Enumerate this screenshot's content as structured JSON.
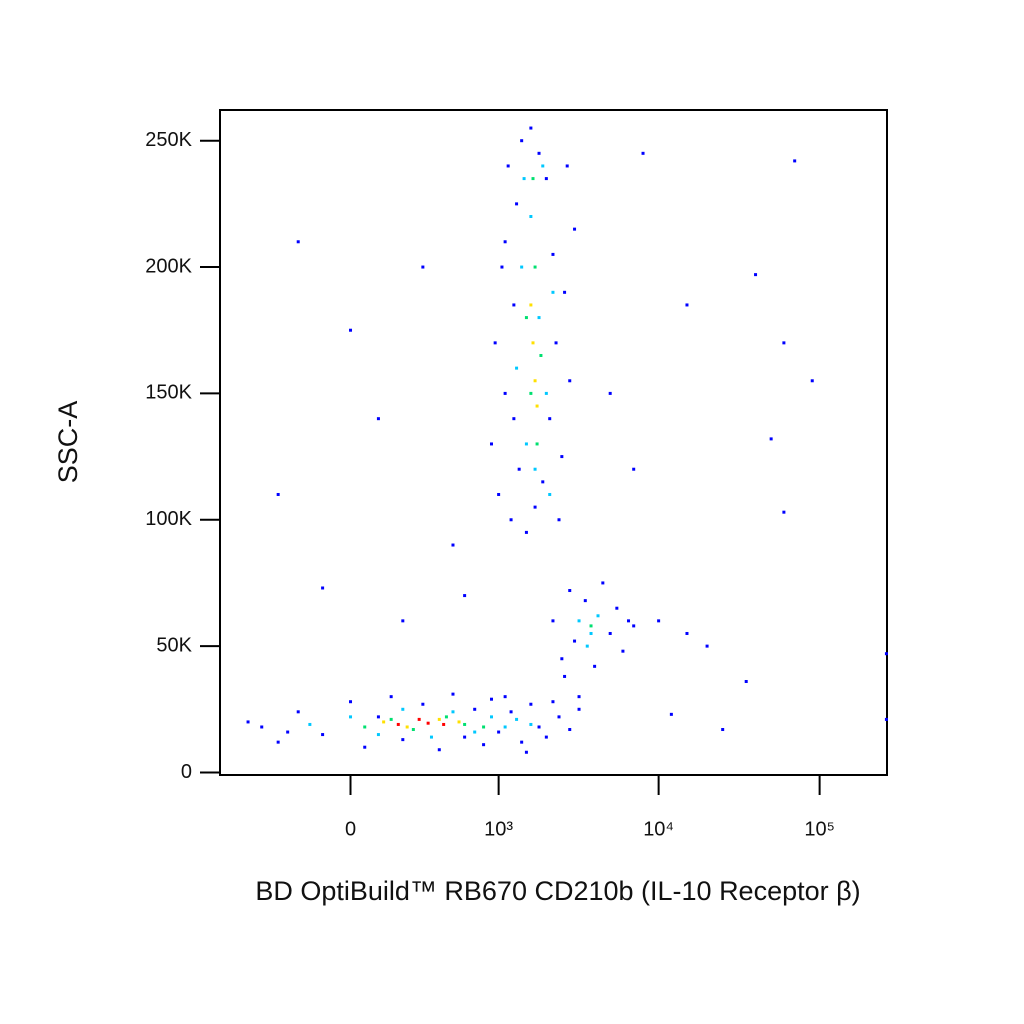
{
  "chart_data": {
    "type": "scatter",
    "xlabel": "BD OptiBuild™ RB670 CD210b (IL-10 Receptor β)",
    "ylabel": "SSC-A",
    "xscale": "biexponential",
    "xlim": [
      -770,
      262144
    ],
    "xticks": [
      0,
      {
        "value": 1000,
        "label": "10³"
      },
      {
        "value": 10000,
        "label": "10⁴"
      },
      {
        "value": 100000,
        "label": "10⁵"
      }
    ],
    "ylim": [
      -1000,
      262144
    ],
    "yticks": [
      0,
      {
        "value": 50000,
        "label": "50K"
      },
      {
        "value": 100000,
        "label": "100K"
      },
      {
        "value": 150000,
        "label": "150K"
      },
      {
        "value": 200000,
        "label": "200K"
      },
      {
        "value": 250000,
        "label": "250K"
      }
    ],
    "series": [
      {
        "color": "#0000ff",
        "x": [
          -400,
          -300,
          -200,
          -100,
          0,
          50,
          100,
          150,
          200,
          300,
          400,
          500,
          600,
          700,
          800,
          900,
          1000,
          1200,
          1400,
          1600,
          1800,
          2000,
          2400,
          2800,
          3200,
          -500,
          -250,
          1100,
          1500,
          2200,
          900,
          950,
          1000,
          1050,
          1100,
          1150,
          1200,
          1250,
          1300,
          1350,
          1400,
          1500,
          1600,
          1700,
          1800,
          1900,
          2000,
          2100,
          2200,
          2300,
          2500,
          2600,
          2800,
          3000,
          1250,
          2400,
          1100,
          2700,
          2200,
          2500,
          2800,
          3000,
          3500,
          4000,
          4500,
          5000,
          5500,
          6000,
          6500,
          7000,
          2600,
          3200,
          -300,
          -200,
          0,
          100,
          300,
          500,
          200,
          600,
          -100,
          10000,
          15000,
          20000,
          40000,
          50000,
          60000,
          70000,
          90000,
          60000,
          12000,
          25000,
          35000,
          260000,
          260000,
          15000,
          8000,
          5000,
          7000
        ],
        "y": [
          18000,
          12000,
          24000,
          15000,
          28000,
          10000,
          22000,
          30000,
          13000,
          27000,
          9000,
          31000,
          14000,
          25000,
          11000,
          29000,
          16000,
          24000,
          12000,
          27000,
          18000,
          14000,
          22000,
          17000,
          25000,
          20000,
          16000,
          30000,
          8000,
          28000,
          130000,
          170000,
          110000,
          200000,
          150000,
          240000,
          100000,
          185000,
          225000,
          120000,
          250000,
          95000,
          255000,
          105000,
          245000,
          115000,
          235000,
          140000,
          205000,
          170000,
          125000,
          190000,
          155000,
          215000,
          140000,
          100000,
          210000,
          240000,
          60000,
          45000,
          72000,
          52000,
          68000,
          42000,
          75000,
          55000,
          65000,
          48000,
          60000,
          58000,
          38000,
          30000,
          110000,
          210000,
          175000,
          140000,
          200000,
          90000,
          60000,
          70000,
          73000,
          60000,
          55000,
          50000,
          197000,
          132000,
          170000,
          242000,
          155000,
          103000,
          23000,
          17000,
          36000,
          47000,
          21000,
          185000,
          245000,
          150000,
          120000
        ]
      },
      {
        "color": "#00c8ff",
        "x": [
          -150,
          0,
          100,
          200,
          350,
          500,
          700,
          900,
          1100,
          1300,
          1600,
          1300,
          1400,
          1500,
          1600,
          1700,
          1800,
          1900,
          2000,
          2100,
          1450,
          2200,
          3200,
          3800,
          4200,
          3600
        ],
        "y": [
          19000,
          22000,
          15000,
          25000,
          14000,
          24000,
          16000,
          22000,
          18000,
          21000,
          19000,
          160000,
          200000,
          130000,
          220000,
          120000,
          180000,
          240000,
          150000,
          110000,
          235000,
          190000,
          60000,
          55000,
          62000,
          50000
        ]
      },
      {
        "color": "#00e070",
        "x": [
          50,
          150,
          250,
          450,
          600,
          800,
          1500,
          1600,
          1700,
          1750,
          1650,
          1850,
          3800
        ],
        "y": [
          18000,
          21000,
          17000,
          22000,
          19000,
          18000,
          180000,
          150000,
          200000,
          130000,
          235000,
          165000,
          58000
        ]
      },
      {
        "color": "#ffe000",
        "x": [
          120,
          220,
          400,
          550,
          1650,
          1700,
          1750,
          1600
        ],
        "y": [
          20000,
          18000,
          21000,
          20000,
          170000,
          155000,
          145000,
          185000
        ]
      },
      {
        "color": "#ff0000",
        "x": [
          180,
          280,
          330,
          430
        ],
        "y": [
          19000,
          21000,
          19500,
          19000
        ]
      }
    ]
  }
}
